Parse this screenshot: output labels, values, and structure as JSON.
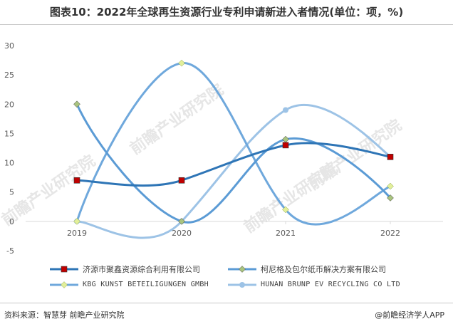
{
  "title": "图表10：2022年全球再生资源行业专利申请新进入者情况(单位：项，%)",
  "watermark": "前瞻产业研究院",
  "source": "资料来源：智慧芽 前瞻产业研究院",
  "credit": "@前瞻经济学人APP",
  "colors": {
    "series1": "#2E75B6",
    "series2": "#5B9BD5",
    "series3": "#6FA8DC",
    "series4": "#9DC3E6",
    "marker1": "#C00000",
    "marker2": "#A9C47F",
    "marker3": "#E2EF9A",
    "marker4": "#9DC3E6"
  },
  "chart_data": {
    "type": "line",
    "categories": [
      "2019",
      "2020",
      "2021",
      "2022"
    ],
    "ylim": [
      -5,
      30
    ],
    "yticks": [
      "-5",
      "0",
      "5",
      "10",
      "15",
      "20",
      "25",
      "30"
    ],
    "smooth": true,
    "legend_position": "bottom",
    "series": [
      {
        "name": "济源市聚鑫资源综合利用有限公司",
        "values": [
          7,
          7,
          13,
          11
        ],
        "marker": "square"
      },
      {
        "name": "柯尼格及包尔纸币解决方案有限公司",
        "values": [
          20,
          0,
          14,
          4
        ],
        "marker": "diamond"
      },
      {
        "name": "KBG KUNST BETEILIGUNGEN GMBH",
        "values": [
          0,
          27,
          2,
          6
        ],
        "marker": "diamond"
      },
      {
        "name": "HUNAN BRUNP EV RECYCLING CO LTD",
        "values": [
          0,
          0,
          19,
          11
        ],
        "marker": "circle"
      }
    ]
  }
}
